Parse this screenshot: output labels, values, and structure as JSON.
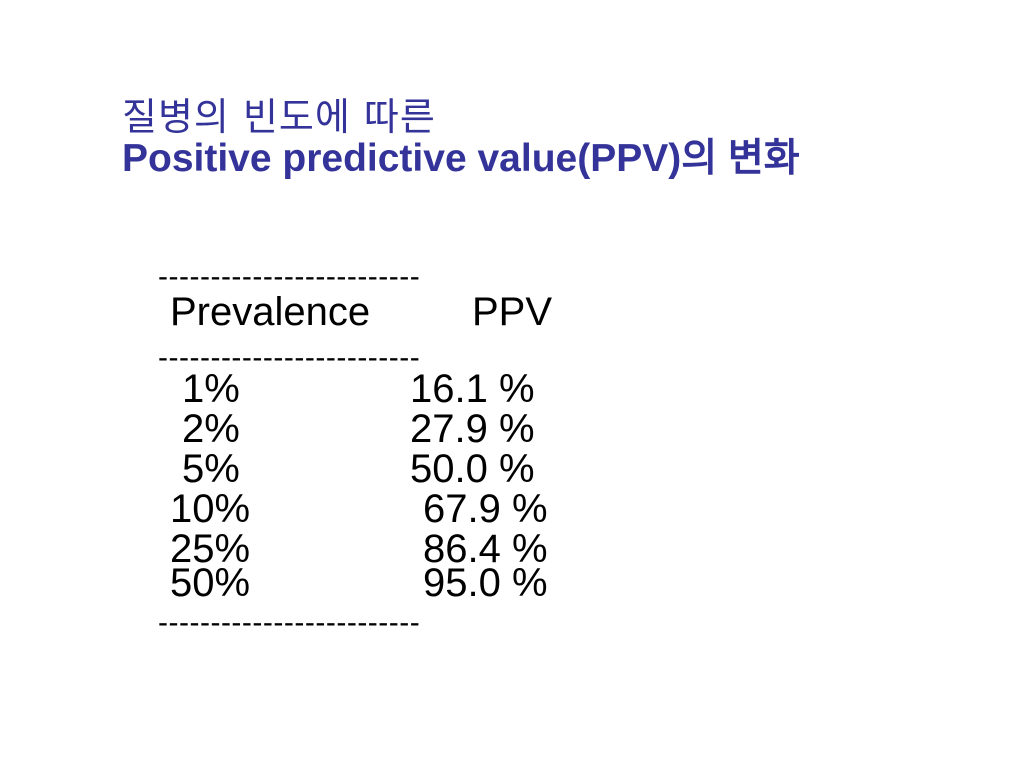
{
  "title": {
    "line1": "질병의 빈도에 따른",
    "line2": "Positive predictive value(PPV)의 변화"
  },
  "table": {
    "rule": "-------------------------",
    "headers": {
      "prevalence": "Prevalence",
      "ppv": "PPV"
    },
    "rows": [
      {
        "prevalence": "1%",
        "ppv": "16.1 %"
      },
      {
        "prevalence": "2%",
        "ppv": "27.9 %"
      },
      {
        "prevalence": "5%",
        "ppv": "50.0 %"
      },
      {
        "prevalence": "10%",
        "ppv": "67.9 %"
      },
      {
        "prevalence": "25%",
        "ppv": "86.4 %"
      },
      {
        "prevalence": "50%",
        "ppv": "95.0 %"
      }
    ]
  },
  "colors": {
    "title": "#333399",
    "text": "#000000",
    "background": "#ffffff"
  }
}
